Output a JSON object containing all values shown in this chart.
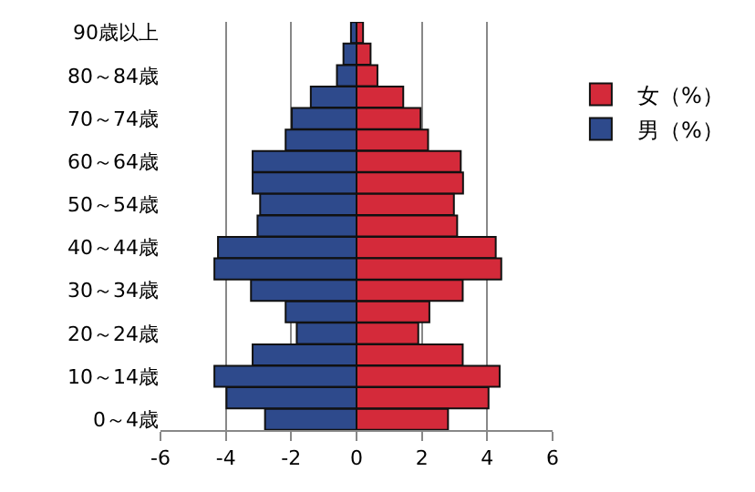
{
  "chart_data": {
    "type": "bar",
    "orientation": "horizontal",
    "categories": [
      "90歳以上",
      null,
      "80～84歳",
      null,
      "70～74歳",
      null,
      "60～64歳",
      null,
      "50～54歳",
      null,
      "40～44歳",
      null,
      "30～34歳",
      null,
      "20～24歳",
      null,
      "10～14歳",
      null,
      "0～4歳"
    ],
    "series": [
      {
        "name": "女（%）",
        "color": "#d42a3a",
        "values": [
          0.2,
          0.43,
          0.64,
          1.43,
          1.96,
          2.19,
          3.19,
          3.26,
          2.98,
          3.08,
          4.26,
          4.43,
          3.25,
          2.23,
          1.89,
          3.25,
          4.38,
          4.04,
          2.8
        ]
      },
      {
        "name": "男（%）",
        "color": "#2e4a8c",
        "values": [
          -0.17,
          -0.4,
          -0.6,
          -1.4,
          -1.98,
          -2.17,
          -3.18,
          -3.18,
          -2.95,
          -3.03,
          -4.24,
          -4.35,
          -3.23,
          -2.17,
          -1.83,
          -3.18,
          -4.35,
          -3.98,
          -2.8
        ]
      }
    ],
    "xlim": [
      -6,
      6
    ],
    "xticks": [
      -6,
      -4,
      -2,
      0,
      2,
      4,
      6
    ],
    "grid": "x",
    "stacked": true,
    "legend": "right"
  }
}
